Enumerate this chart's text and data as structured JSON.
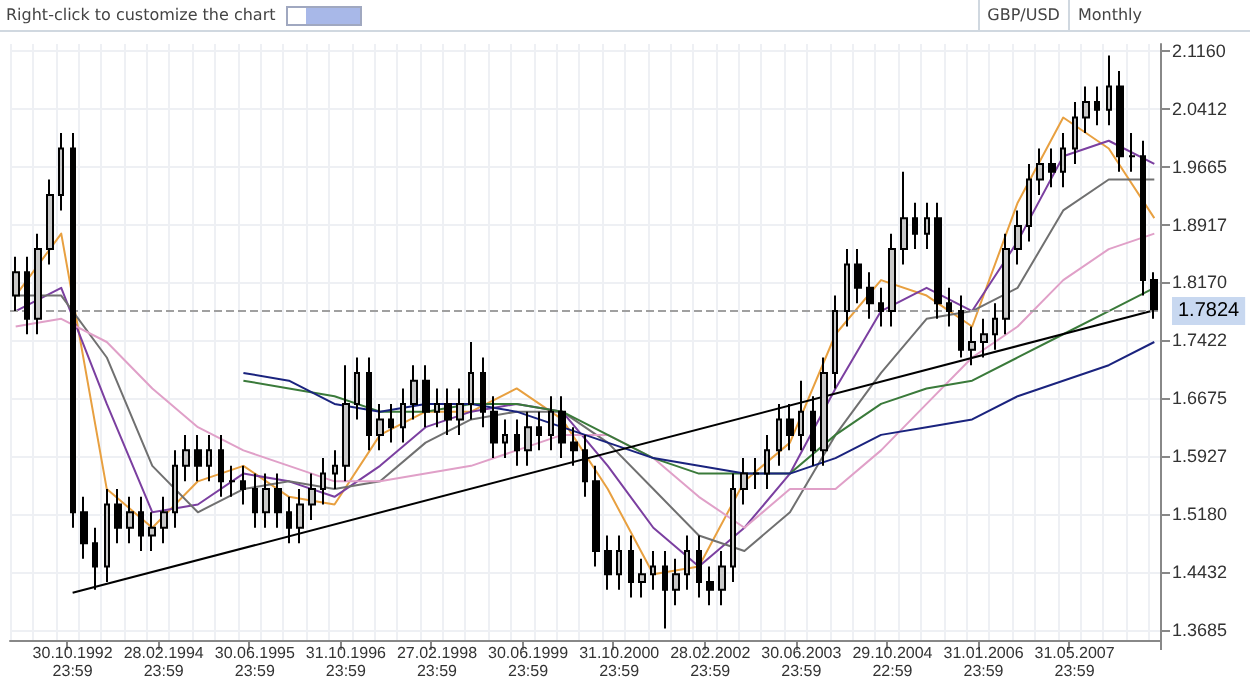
{
  "chart_data": {
    "type": "candlestick",
    "title": "GBP/USD",
    "subtitle": "Monthly",
    "annotations": [
      "Right-click to customize the chart"
    ],
    "categories": [
      null,
      null,
      null,
      null,
      null,
      "30.10.1992\n23:59",
      null,
      null,
      null,
      null,
      null,
      null,
      null,
      "28.02.1994\n23:59",
      null,
      null,
      null,
      null,
      null,
      null,
      null,
      "30.06.1995\n23:59",
      null,
      null,
      null,
      null,
      null,
      null,
      null,
      "31.10.1996\n23:59",
      null,
      null,
      null,
      null,
      null,
      null,
      null,
      "27.02.1998\n23:59",
      null,
      null,
      null,
      null,
      null,
      null,
      null,
      "30.06.1999\n23:59",
      null,
      null,
      null,
      null,
      null,
      null,
      null,
      "31.10.2000\n23:59",
      null,
      null,
      null,
      null,
      null,
      null,
      null,
      "28.02.2002\n23:59",
      null,
      null,
      null,
      null,
      null,
      null,
      null,
      "30.06.2003\n23:59",
      null,
      null,
      null,
      null,
      null,
      null,
      null,
      "29.10.2004\n22:59",
      null,
      null,
      null,
      null,
      null,
      null,
      null,
      "31.01.2006\n23:59",
      null,
      null,
      null,
      null,
      null,
      null,
      null,
      "31.05.2007\n23:59",
      null,
      null,
      null,
      null,
      null,
      null,
      null
    ],
    "ylim": [
      1.355,
      2.125
    ],
    "yticks": [
      1.3685,
      1.4432,
      {
        "value": 1.518,
        "label": "1.5180"
      },
      1.5927,
      1.6675,
      1.7422,
      {
        "value": 1.817,
        "label": "1.8170"
      },
      1.8917,
      1.9665,
      2.0412,
      {
        "value": 2.116,
        "label": "2.1160"
      }
    ],
    "grid": true,
    "marker": "none",
    "line_style": "solid",
    "ref_lines": [
      {
        "axis": "y",
        "value": 1.7824,
        "label": "1.7824",
        "color": "#a0a0a0",
        "line_style": "dashed"
      }
    ],
    "series": [
      {
        "type": "line",
        "color": "#e8a040",
        "values": [
          1.8,
          null,
          null,
          null,
          1.88,
          null,
          null,
          null,
          1.55,
          null,
          null,
          null,
          1.5,
          null,
          null,
          null,
          1.56,
          null,
          null,
          null,
          1.58,
          null,
          null,
          null,
          1.54,
          null,
          null,
          null,
          1.53,
          null,
          null,
          null,
          1.62,
          null,
          null,
          null,
          1.65,
          null,
          null,
          null,
          1.65,
          null,
          null,
          null,
          1.68,
          null,
          null,
          null,
          1.64,
          null,
          null,
          null,
          1.55,
          null,
          null,
          null,
          1.44,
          null,
          null,
          null,
          1.45,
          null,
          null,
          null,
          1.56,
          null,
          null,
          null,
          1.61,
          null,
          null,
          null,
          1.75,
          null,
          null,
          null,
          1.82,
          null,
          null,
          null,
          1.8,
          null,
          null,
          null,
          1.76,
          null,
          null,
          null,
          1.92,
          null,
          null,
          null,
          2.03,
          null,
          null,
          null,
          1.99,
          null,
          null,
          null,
          1.9
        ]
      },
      {
        "type": "line",
        "color": "#7b3fa0",
        "values": [
          1.78,
          null,
          null,
          null,
          1.81,
          null,
          null,
          null,
          1.66,
          null,
          null,
          null,
          1.52,
          null,
          null,
          null,
          1.53,
          null,
          null,
          null,
          1.57,
          null,
          null,
          null,
          1.56,
          null,
          null,
          null,
          1.54,
          null,
          null,
          null,
          1.58,
          null,
          null,
          null,
          1.63,
          null,
          null,
          null,
          1.65,
          null,
          null,
          null,
          1.66,
          null,
          null,
          null,
          1.65,
          null,
          null,
          null,
          1.58,
          null,
          null,
          null,
          1.5,
          null,
          null,
          null,
          1.45,
          null,
          null,
          null,
          1.5,
          null,
          null,
          null,
          1.57,
          null,
          null,
          null,
          1.68,
          null,
          null,
          null,
          1.78,
          null,
          null,
          null,
          1.81,
          null,
          null,
          null,
          1.78,
          null,
          null,
          null,
          1.87,
          null,
          null,
          null,
          1.98,
          null,
          null,
          null,
          2.0,
          null,
          null,
          null,
          1.97
        ]
      },
      {
        "type": "line",
        "color": "#707070",
        "values": [
          1.8,
          null,
          null,
          null,
          1.8,
          null,
          null,
          null,
          1.72,
          null,
          null,
          null,
          1.58,
          null,
          null,
          null,
          1.52,
          null,
          null,
          null,
          1.55,
          null,
          null,
          null,
          1.56,
          null,
          null,
          null,
          1.55,
          null,
          null,
          null,
          1.56,
          null,
          null,
          null,
          1.61,
          null,
          null,
          null,
          1.64,
          null,
          null,
          null,
          1.65,
          null,
          null,
          null,
          1.65,
          null,
          null,
          null,
          1.61,
          null,
          null,
          null,
          1.55,
          null,
          null,
          null,
          1.49,
          null,
          null,
          null,
          1.47,
          null,
          null,
          null,
          1.52,
          null,
          null,
          null,
          1.62,
          null,
          null,
          null,
          1.7,
          null,
          null,
          null,
          1.77,
          null,
          null,
          null,
          1.78,
          null,
          null,
          null,
          1.81,
          null,
          null,
          null,
          1.91,
          null,
          null,
          null,
          1.95,
          null,
          null,
          null,
          1.95
        ]
      },
      {
        "type": "line",
        "color": "#e0a0c8",
        "values": [
          1.76,
          null,
          null,
          null,
          1.77,
          null,
          null,
          null,
          1.74,
          null,
          null,
          null,
          1.68,
          null,
          null,
          null,
          1.63,
          null,
          null,
          null,
          1.6,
          null,
          null,
          null,
          1.58,
          null,
          null,
          null,
          1.56,
          null,
          null,
          null,
          1.56,
          null,
          null,
          null,
          1.57,
          null,
          null,
          null,
          1.58,
          null,
          null,
          null,
          1.6,
          null,
          null,
          null,
          1.62,
          null,
          null,
          null,
          1.62,
          null,
          null,
          null,
          1.59,
          null,
          null,
          null,
          1.54,
          null,
          null,
          null,
          1.5,
          null,
          null,
          null,
          1.55,
          null,
          null,
          null,
          1.55,
          null,
          null,
          null,
          1.6,
          null,
          null,
          null,
          1.66,
          null,
          null,
          null,
          1.72,
          null,
          null,
          null,
          1.76,
          null,
          null,
          null,
          1.82,
          null,
          null,
          null,
          1.86,
          null,
          null,
          null,
          1.88
        ]
      },
      {
        "type": "line",
        "color": "#3a7a3a",
        "values": [
          null,
          null,
          null,
          null,
          null,
          null,
          null,
          null,
          null,
          null,
          null,
          null,
          null,
          null,
          null,
          null,
          null,
          null,
          null,
          null,
          1.69,
          null,
          null,
          null,
          1.68,
          null,
          null,
          null,
          1.67,
          null,
          null,
          null,
          1.65,
          null,
          null,
          null,
          1.65,
          null,
          null,
          null,
          1.66,
          null,
          null,
          null,
          1.66,
          null,
          null,
          null,
          1.65,
          null,
          null,
          null,
          1.62,
          null,
          null,
          null,
          1.59,
          null,
          null,
          null,
          1.57,
          null,
          null,
          null,
          1.57,
          null,
          null,
          null,
          1.57,
          null,
          null,
          null,
          1.62,
          null,
          null,
          null,
          1.66,
          null,
          null,
          null,
          1.68,
          null,
          null,
          null,
          1.69,
          null,
          null,
          null,
          1.72,
          null,
          null,
          null,
          1.75,
          null,
          null,
          null,
          1.78,
          null,
          null,
          null,
          1.81
        ]
      },
      {
        "type": "line",
        "color": "#1a237e",
        "values": [
          null,
          null,
          null,
          null,
          null,
          null,
          null,
          null,
          null,
          null,
          null,
          null,
          null,
          null,
          null,
          null,
          null,
          null,
          null,
          null,
          1.7,
          null,
          null,
          null,
          1.69,
          null,
          null,
          null,
          1.66,
          null,
          null,
          null,
          1.65,
          null,
          null,
          null,
          1.66,
          null,
          null,
          null,
          1.66,
          null,
          null,
          null,
          1.65,
          null,
          null,
          null,
          1.63,
          null,
          null,
          null,
          1.61,
          null,
          null,
          null,
          1.59,
          null,
          null,
          null,
          1.58,
          null,
          null,
          null,
          1.57,
          null,
          null,
          null,
          1.57,
          null,
          null,
          null,
          1.59,
          null,
          null,
          null,
          1.62,
          null,
          null,
          null,
          1.63,
          null,
          null,
          null,
          1.64,
          null,
          null,
          null,
          1.67,
          null,
          null,
          null,
          1.69,
          null,
          null,
          null,
          1.71,
          null,
          null,
          null,
          1.74
        ]
      },
      {
        "type": "line",
        "color": "#000000",
        "values": [
          null,
          null,
          null,
          null,
          null,
          1.416,
          null,
          null,
          null,
          null,
          null,
          null,
          null,
          null,
          null,
          null,
          null,
          null,
          null,
          null,
          null,
          null,
          null,
          null,
          null,
          null,
          null,
          null,
          null,
          null,
          null,
          null,
          null,
          null,
          null,
          null,
          null,
          null,
          null,
          null,
          null,
          null,
          null,
          null,
          null,
          null,
          null,
          null,
          null,
          null,
          null,
          null,
          null,
          null,
          null,
          null,
          null,
          null,
          null,
          null,
          null,
          null,
          null,
          null,
          null,
          null,
          null,
          null,
          null,
          null,
          null,
          null,
          null,
          null,
          null,
          null,
          null,
          null,
          null,
          null,
          null,
          null,
          null,
          null,
          null,
          null,
          null,
          null,
          null,
          null,
          null,
          null,
          null,
          null,
          null,
          null,
          null,
          null,
          null,
          null,
          1.781
        ]
      },
      {
        "type": "candlestick",
        "color": "#000000",
        "ohlc": [
          [
            1.8,
            1.85,
            1.78,
            1.83
          ],
          [
            1.83,
            1.85,
            1.75,
            1.77
          ],
          [
            1.77,
            1.88,
            1.75,
            1.86
          ],
          [
            1.86,
            1.95,
            1.84,
            1.93
          ],
          [
            1.93,
            2.01,
            1.91,
            1.99
          ],
          [
            1.99,
            2.01,
            1.5,
            1.52
          ],
          [
            1.52,
            1.54,
            1.46,
            1.48
          ],
          [
            1.48,
            1.5,
            1.42,
            1.45
          ],
          [
            1.45,
            1.55,
            1.43,
            1.53
          ],
          [
            1.53,
            1.55,
            1.48,
            1.5
          ],
          [
            1.5,
            1.54,
            1.48,
            1.52
          ],
          [
            1.52,
            1.54,
            1.47,
            1.49
          ],
          [
            1.49,
            1.52,
            1.47,
            1.5
          ],
          [
            1.5,
            1.54,
            1.48,
            1.52
          ],
          [
            1.52,
            1.6,
            1.5,
            1.58
          ],
          [
            1.58,
            1.62,
            1.56,
            1.6
          ],
          [
            1.6,
            1.62,
            1.56,
            1.58
          ],
          [
            1.58,
            1.62,
            1.56,
            1.6
          ],
          [
            1.6,
            1.62,
            1.54,
            1.56
          ],
          [
            1.56,
            1.58,
            1.54,
            1.56
          ],
          [
            1.56,
            1.58,
            1.53,
            1.55
          ],
          [
            1.55,
            1.57,
            1.5,
            1.52
          ],
          [
            1.52,
            1.57,
            1.5,
            1.55
          ],
          [
            1.55,
            1.57,
            1.5,
            1.52
          ],
          [
            1.52,
            1.54,
            1.48,
            1.5
          ],
          [
            1.5,
            1.55,
            1.48,
            1.53
          ],
          [
            1.53,
            1.57,
            1.51,
            1.55
          ],
          [
            1.55,
            1.59,
            1.53,
            1.57
          ],
          [
            1.57,
            1.6,
            1.55,
            1.58
          ],
          [
            1.58,
            1.71,
            1.56,
            1.66
          ],
          [
            1.66,
            1.72,
            1.64,
            1.7
          ],
          [
            1.7,
            1.72,
            1.6,
            1.62
          ],
          [
            1.62,
            1.66,
            1.6,
            1.64
          ],
          [
            1.64,
            1.66,
            1.61,
            1.63
          ],
          [
            1.63,
            1.68,
            1.61,
            1.66
          ],
          [
            1.66,
            1.71,
            1.64,
            1.69
          ],
          [
            1.69,
            1.71,
            1.63,
            1.65
          ],
          [
            1.65,
            1.68,
            1.63,
            1.66
          ],
          [
            1.66,
            1.68,
            1.62,
            1.64
          ],
          [
            1.64,
            1.68,
            1.62,
            1.66
          ],
          [
            1.66,
            1.74,
            1.64,
            1.7
          ],
          [
            1.7,
            1.72,
            1.63,
            1.65
          ],
          [
            1.65,
            1.67,
            1.59,
            1.61
          ],
          [
            1.61,
            1.64,
            1.59,
            1.62
          ],
          [
            1.62,
            1.64,
            1.58,
            1.6
          ],
          [
            1.6,
            1.65,
            1.58,
            1.63
          ],
          [
            1.63,
            1.65,
            1.6,
            1.62
          ],
          [
            1.62,
            1.67,
            1.6,
            1.65
          ],
          [
            1.65,
            1.67,
            1.59,
            1.61
          ],
          [
            1.61,
            1.63,
            1.58,
            1.6
          ],
          [
            1.6,
            1.62,
            1.54,
            1.56
          ],
          [
            1.56,
            1.58,
            1.45,
            1.47
          ],
          [
            1.47,
            1.49,
            1.42,
            1.44
          ],
          [
            1.44,
            1.49,
            1.42,
            1.47
          ],
          [
            1.47,
            1.49,
            1.41,
            1.43
          ],
          [
            1.43,
            1.46,
            1.41,
            1.44
          ],
          [
            1.44,
            1.47,
            1.42,
            1.45
          ],
          [
            1.45,
            1.47,
            1.37,
            1.42
          ],
          [
            1.42,
            1.46,
            1.4,
            1.44
          ],
          [
            1.44,
            1.49,
            1.42,
            1.47
          ],
          [
            1.47,
            1.49,
            1.41,
            1.43
          ],
          [
            1.43,
            1.45,
            1.4,
            1.42
          ],
          [
            1.42,
            1.47,
            1.4,
            1.45
          ],
          [
            1.45,
            1.57,
            1.43,
            1.55
          ],
          [
            1.55,
            1.59,
            1.53,
            1.57
          ],
          [
            1.57,
            1.59,
            1.55,
            1.57
          ],
          [
            1.57,
            1.62,
            1.55,
            1.6
          ],
          [
            1.6,
            1.66,
            1.58,
            1.64
          ],
          [
            1.64,
            1.66,
            1.6,
            1.62
          ],
          [
            1.62,
            1.69,
            1.6,
            1.65
          ],
          [
            1.65,
            1.67,
            1.58,
            1.6
          ],
          [
            1.6,
            1.72,
            1.58,
            1.7
          ],
          [
            1.7,
            1.8,
            1.68,
            1.78
          ],
          [
            1.78,
            1.86,
            1.76,
            1.84
          ],
          [
            1.84,
            1.86,
            1.79,
            1.81
          ],
          [
            1.81,
            1.83,
            1.77,
            1.79
          ],
          [
            1.79,
            1.81,
            1.76,
            1.78
          ],
          [
            1.78,
            1.88,
            1.76,
            1.86
          ],
          [
            1.86,
            1.96,
            1.84,
            1.9
          ],
          [
            1.9,
            1.92,
            1.86,
            1.88
          ],
          [
            1.88,
            1.92,
            1.86,
            1.9
          ],
          [
            1.9,
            1.92,
            1.77,
            1.79
          ],
          [
            1.79,
            1.81,
            1.76,
            1.78
          ],
          [
            1.78,
            1.8,
            1.72,
            1.73
          ],
          [
            1.73,
            1.76,
            1.71,
            1.74
          ],
          [
            1.74,
            1.77,
            1.72,
            1.75
          ],
          [
            1.75,
            1.79,
            1.73,
            1.77
          ],
          [
            1.77,
            1.88,
            1.75,
            1.86
          ],
          [
            1.86,
            1.91,
            1.84,
            1.89
          ],
          [
            1.89,
            1.97,
            1.87,
            1.95
          ],
          [
            1.95,
            1.99,
            1.93,
            1.97
          ],
          [
            1.97,
            1.99,
            1.94,
            1.96
          ],
          [
            1.96,
            2.01,
            1.94,
            1.99
          ],
          [
            1.99,
            2.05,
            1.97,
            2.03
          ],
          [
            2.03,
            2.07,
            2.01,
            2.05
          ],
          [
            2.05,
            2.07,
            2.02,
            2.04
          ],
          [
            2.04,
            2.11,
            2.02,
            2.07
          ],
          [
            2.07,
            2.09,
            1.96,
            1.98
          ],
          [
            1.98,
            2.01,
            1.96,
            1.98
          ],
          [
            1.98,
            2.0,
            1.8,
            1.82
          ],
          [
            1.82,
            1.83,
            1.77,
            1.7824
          ]
        ]
      }
    ]
  }
}
